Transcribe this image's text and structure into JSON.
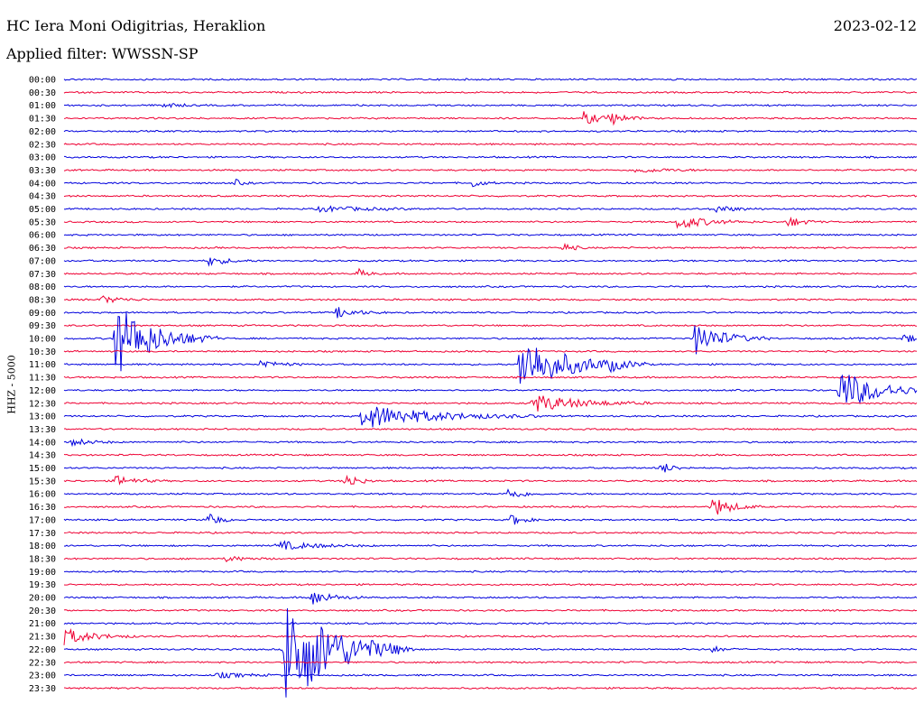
{
  "header": {
    "station": "HC Iera Moni Odigitrias, Heraklion",
    "date": "2023-02-12",
    "filter": "Applied filter: WWSSN-SP"
  },
  "colors": {
    "even_row": "#0000dd",
    "odd_row": "#ee0033"
  },
  "chart_data": {
    "type": "line",
    "title": "",
    "ylabel": "HHZ - 5000",
    "row_labels": [
      "00:00",
      "00:30",
      "01:00",
      "01:30",
      "02:00",
      "02:30",
      "03:00",
      "03:30",
      "04:00",
      "04:30",
      "05:00",
      "05:30",
      "06:00",
      "06:30",
      "07:00",
      "07:30",
      "08:00",
      "08:30",
      "09:00",
      "09:30",
      "10:00",
      "10:30",
      "11:00",
      "11:30",
      "12:00",
      "12:30",
      "13:00",
      "13:30",
      "14:00",
      "14:30",
      "15:00",
      "15:30",
      "16:00",
      "16:30",
      "17:00",
      "17:30",
      "18:00",
      "18:30",
      "19:00",
      "19:30",
      "20:00",
      "20:30",
      "21:00",
      "21:30",
      "22:00",
      "22:30",
      "23:00",
      "23:30"
    ],
    "row_minutes": 30,
    "events": [
      {
        "row": 2,
        "t": 0.117,
        "a": 4,
        "d": 0.012
      },
      {
        "row": 3,
        "t": 0.61,
        "a": 8,
        "d": 0.015
      },
      {
        "row": 3,
        "t": 0.64,
        "a": 8,
        "d": 0.015
      },
      {
        "row": 7,
        "t": 0.67,
        "a": 3,
        "d": 0.03
      },
      {
        "row": 8,
        "t": 0.2,
        "a": 4,
        "d": 0.008
      },
      {
        "row": 8,
        "t": 0.48,
        "a": 5,
        "d": 0.01
      },
      {
        "row": 10,
        "t": 0.3,
        "a": 3,
        "d": 0.05
      },
      {
        "row": 10,
        "t": 0.76,
        "a": 5,
        "d": 0.02
      },
      {
        "row": 11,
        "t": 0.72,
        "a": 8,
        "d": 0.03
      },
      {
        "row": 11,
        "t": 0.85,
        "a": 6,
        "d": 0.015
      },
      {
        "row": 13,
        "t": 0.585,
        "a": 6,
        "d": 0.01
      },
      {
        "row": 14,
        "t": 0.17,
        "a": 5,
        "d": 0.02
      },
      {
        "row": 15,
        "t": 0.345,
        "a": 5,
        "d": 0.01
      },
      {
        "row": 17,
        "t": 0.045,
        "a": 4,
        "d": 0.02
      },
      {
        "row": 18,
        "t": 0.32,
        "a": 6,
        "d": 0.02
      },
      {
        "row": 20,
        "t": 0.06,
        "a": 42,
        "d": 0.04
      },
      {
        "row": 20,
        "t": 0.74,
        "a": 18,
        "d": 0.03
      },
      {
        "row": 20,
        "t": 0.985,
        "a": 5,
        "d": 0.015
      },
      {
        "row": 22,
        "t": 0.535,
        "a": 32,
        "d": 0.05
      },
      {
        "row": 22,
        "t": 0.23,
        "a": 5,
        "d": 0.02
      },
      {
        "row": 22,
        "t": 0.64,
        "a": 5,
        "d": 0.01
      },
      {
        "row": 24,
        "t": 0.91,
        "a": 24,
        "d": 0.04
      },
      {
        "row": 25,
        "t": 0.55,
        "a": 10,
        "d": 0.05
      },
      {
        "row": 26,
        "t": 0.35,
        "a": 14,
        "d": 0.07
      },
      {
        "row": 28,
        "t": 0.01,
        "a": 4,
        "d": 0.02
      },
      {
        "row": 30,
        "t": 0.7,
        "a": 7,
        "d": 0.012
      },
      {
        "row": 31,
        "t": 0.06,
        "a": 6,
        "d": 0.02
      },
      {
        "row": 31,
        "t": 0.33,
        "a": 10,
        "d": 0.012
      },
      {
        "row": 32,
        "t": 0.52,
        "a": 7,
        "d": 0.015
      },
      {
        "row": 33,
        "t": 0.76,
        "a": 12,
        "d": 0.02
      },
      {
        "row": 34,
        "t": 0.17,
        "a": 9,
        "d": 0.01
      },
      {
        "row": 34,
        "t": 0.525,
        "a": 7,
        "d": 0.012
      },
      {
        "row": 36,
        "t": 0.25,
        "a": 5,
        "d": 0.04
      },
      {
        "row": 37,
        "t": 0.19,
        "a": 3,
        "d": 0.02
      },
      {
        "row": 40,
        "t": 0.29,
        "a": 9,
        "d": 0.02
      },
      {
        "row": 43,
        "t": 0.0,
        "a": 9,
        "d": 0.03
      },
      {
        "row": 44,
        "t": 0.26,
        "a": 70,
        "d": 0.05
      },
      {
        "row": 44,
        "t": 0.76,
        "a": 4,
        "d": 0.01
      },
      {
        "row": 46,
        "t": 0.18,
        "a": 3,
        "d": 0.03
      }
    ]
  }
}
